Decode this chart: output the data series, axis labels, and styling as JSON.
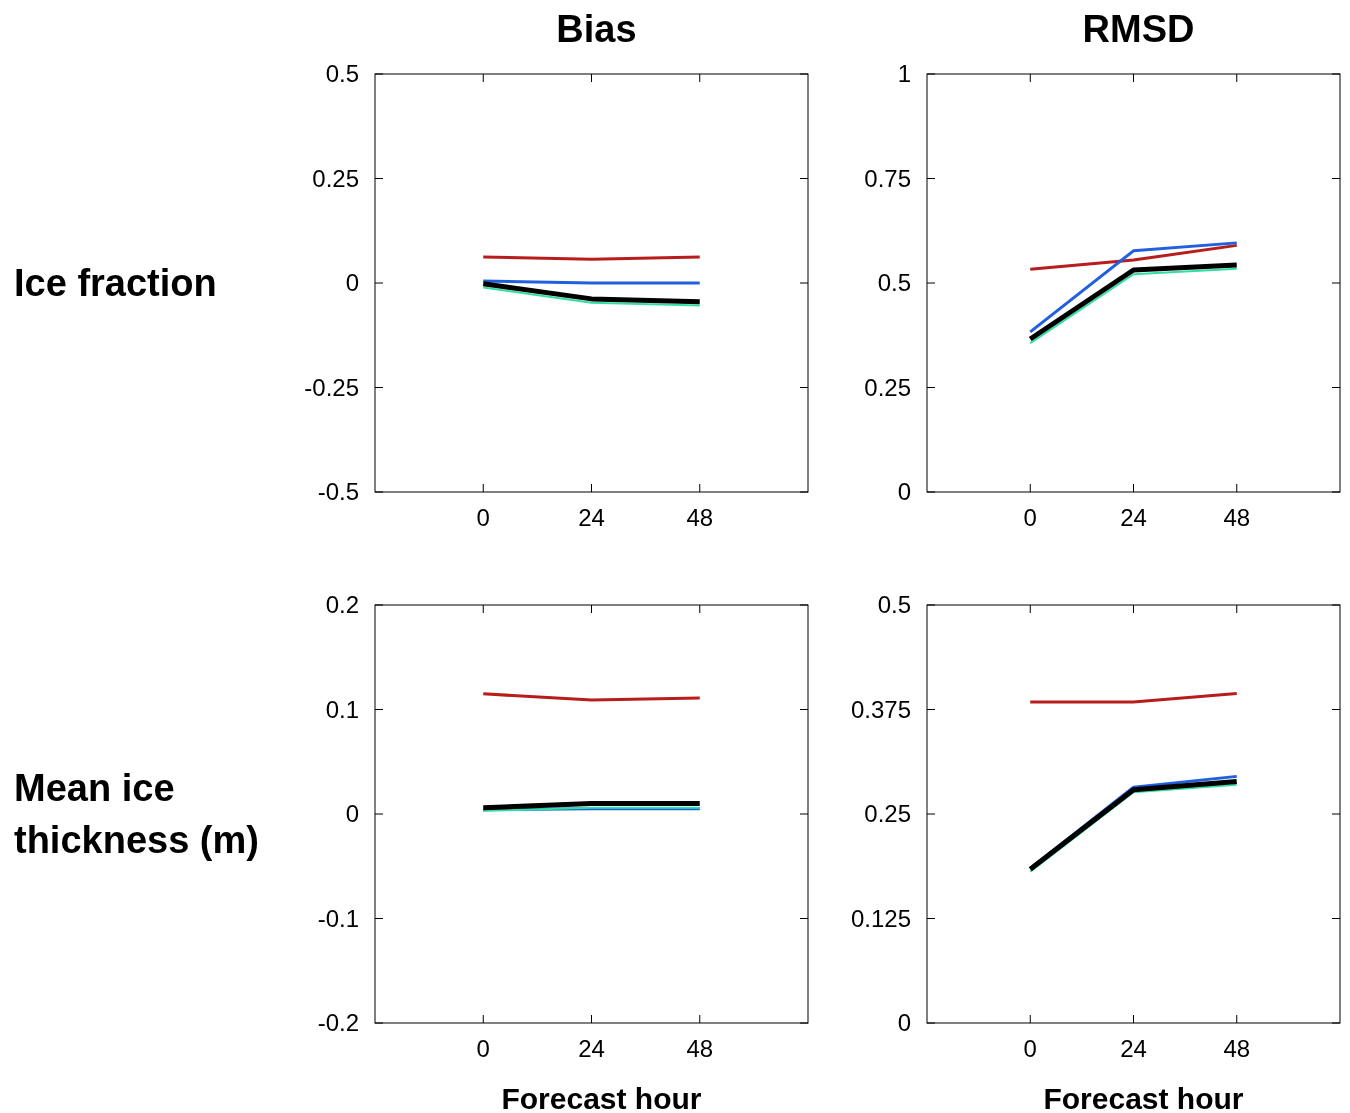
{
  "chart_data": [
    {
      "type": "line",
      "title": "Bias",
      "ylabel": "Ice fraction",
      "x": [
        0,
        24,
        48
      ],
      "xlim": [
        -24,
        72
      ],
      "xticks": [
        0,
        24,
        48
      ],
      "ylim": [
        -0.5,
        0.5
      ],
      "yticks": [
        -0.5,
        -0.25,
        0,
        0.25,
        0.5
      ],
      "grid": false,
      "marker": "none",
      "line_style": "solid",
      "series": [
        {
          "color": "#b81c1c",
          "values": [
            0.062,
            0.057,
            0.062
          ]
        },
        {
          "color": "#2060e0",
          "values": [
            0.005,
            0,
            0
          ]
        },
        {
          "color": "#30e0a0",
          "values": [
            -0.011,
            -0.047,
            -0.054
          ]
        },
        {
          "color": "#000000",
          "values": [
            -0.002,
            -0.038,
            -0.045
          ]
        }
      ]
    },
    {
      "type": "line",
      "title": "RMSD",
      "x": [
        0,
        24,
        48
      ],
      "xlim": [
        -24,
        72
      ],
      "xticks": [
        0,
        24,
        48
      ],
      "ylim": [
        0,
        1
      ],
      "yticks": [
        0,
        0.25,
        0.5,
        0.75,
        1
      ],
      "grid": false,
      "marker": "none",
      "line_style": "solid",
      "series": [
        {
          "color": "#b81c1c",
          "values": [
            0.533,
            0.555,
            0.59
          ]
        },
        {
          "color": "#2060e0",
          "values": [
            0.383,
            0.577,
            0.596
          ]
        },
        {
          "color": "#30e0a0",
          "values": [
            0.356,
            0.521,
            0.534
          ]
        },
        {
          "color": "#000000",
          "values": [
            0.366,
            0.531,
            0.543
          ]
        }
      ]
    },
    {
      "type": "line",
      "ylabel": "Mean ice thickness (m)",
      "xlabel": "Forecast hour",
      "x": [
        0,
        24,
        48
      ],
      "xlim": [
        -24,
        72
      ],
      "xticks": [
        0,
        24,
        48
      ],
      "ylim": [
        -0.2,
        0.2
      ],
      "yticks": [
        -0.2,
        -0.1,
        0,
        0.1,
        0.2
      ],
      "grid": false,
      "marker": "none",
      "line_style": "solid",
      "series": [
        {
          "color": "#b81c1c",
          "values": [
            0.115,
            0.109,
            0.111
          ]
        },
        {
          "color": "#2060e0",
          "values": [
            0.004,
            0.005,
            0.005
          ]
        },
        {
          "color": "#30e0a0",
          "values": [
            0.003,
            0.006,
            0.006
          ]
        },
        {
          "color": "#000000",
          "values": [
            0.006,
            0.01,
            0.01
          ]
        }
      ]
    },
    {
      "type": "line",
      "xlabel": "Forecast hour",
      "x": [
        0,
        24,
        48
      ],
      "xlim": [
        -24,
        72
      ],
      "xticks": [
        0,
        24,
        48
      ],
      "ylim": [
        0,
        0.5
      ],
      "yticks": [
        0,
        0.125,
        0.25,
        0.375,
        0.5
      ],
      "grid": false,
      "marker": "none",
      "line_style": "solid",
      "series": [
        {
          "color": "#b81c1c",
          "values": [
            0.384,
            0.384,
            0.394
          ]
        },
        {
          "color": "#2060e0",
          "values": [
            0.185,
            0.282,
            0.295
          ]
        },
        {
          "color": "#30e0a0",
          "values": [
            0.181,
            0.276,
            0.285
          ]
        },
        {
          "color": "#000000",
          "values": [
            0.184,
            0.279,
            0.289
          ]
        }
      ]
    }
  ]
}
